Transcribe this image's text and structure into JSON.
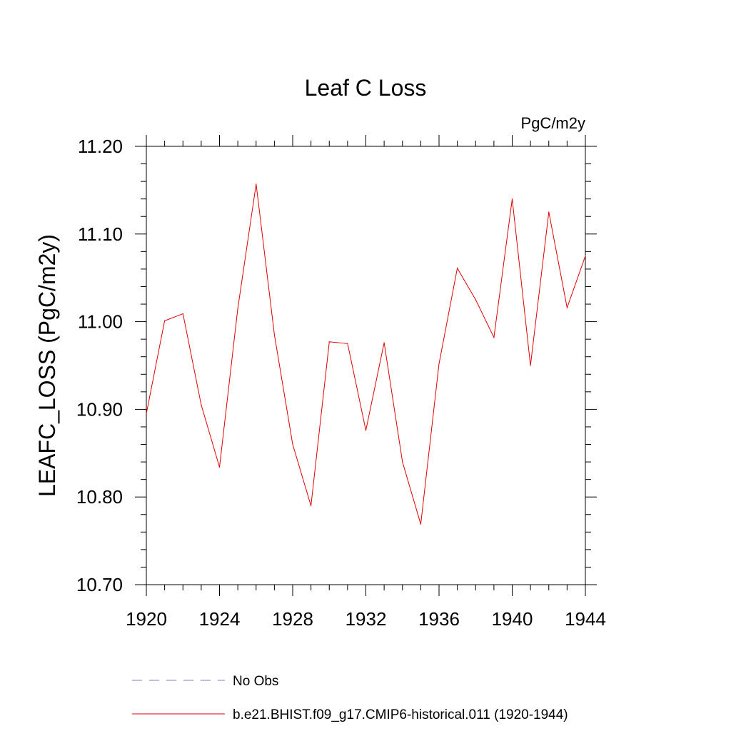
{
  "chart_data": {
    "type": "line",
    "title": "Leaf C Loss",
    "units_label": "PgC/m2y",
    "ylabel": "LEAFC_LOSS  (PgC/m2y)",
    "xlabel": "",
    "xlim": [
      1920,
      1944
    ],
    "ylim": [
      10.7,
      11.2
    ],
    "x_ticks": [
      "1920",
      "1924",
      "1928",
      "1932",
      "1936",
      "1940",
      "1944"
    ],
    "y_ticks": [
      "10.70",
      "10.80",
      "10.90",
      "11.00",
      "11.10",
      "11.20"
    ],
    "grid": false,
    "legend": "bottom",
    "series": [
      {
        "name": "No Obs",
        "color": "#8080c0",
        "dash": "dashed",
        "x": [],
        "values": []
      },
      {
        "name": "b.e21.BHIST.f09_g17.CMIP6-historical.011 (1920-1944)",
        "color": "#e00000",
        "dash": "solid",
        "x": [
          1920,
          1921,
          1922,
          1923,
          1924,
          1925,
          1926,
          1927,
          1928,
          1929,
          1930,
          1931,
          1932,
          1933,
          1934,
          1935,
          1936,
          1937,
          1938,
          1939,
          1940,
          1941,
          1942,
          1943,
          1944
        ],
        "values": [
          10.895,
          11.001,
          11.009,
          10.905,
          10.834,
          11.015,
          11.157,
          10.985,
          10.86,
          10.79,
          10.977,
          10.975,
          10.876,
          10.976,
          10.84,
          10.769,
          10.952,
          11.061,
          11.025,
          10.982,
          11.14,
          10.95,
          11.125,
          11.016,
          11.075
        ]
      }
    ]
  }
}
